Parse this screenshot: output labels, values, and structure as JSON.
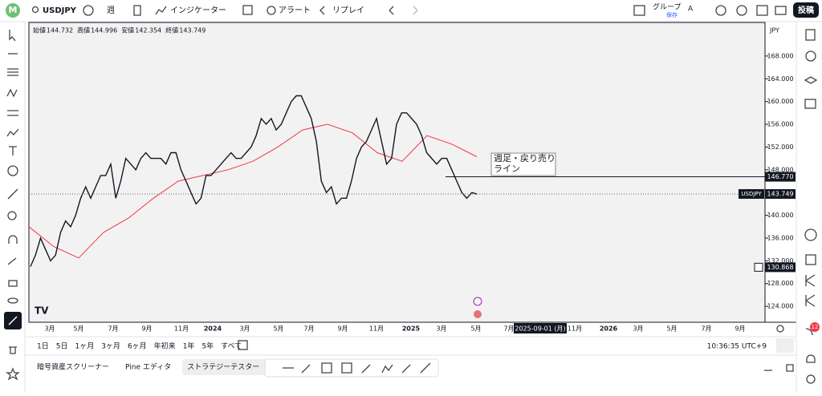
{
  "toolbar": {
    "avatar": "M",
    "symbol": "USDJPY",
    "interval": "週",
    "indicators": "インジケーター",
    "alerts": "アラート",
    "replay": "リプレイ",
    "group": "グループ",
    "saved": "保存",
    "group_letter": "A",
    "publish": "投稿"
  },
  "legend": {
    "open_label": "始値",
    "open": 144.732,
    "high_label": "高値",
    "high": 144.996,
    "low_label": "安値",
    "low": 142.354,
    "close_label": "終値",
    "close": 143.749
  },
  "chart": {
    "currency": "JPY",
    "ylim": [
      121.2,
      173.9
    ],
    "price_ticks": [
      {
        "value": 124,
        "label": "124.000"
      },
      {
        "value": 128,
        "label": "128.000"
      },
      {
        "value": 132,
        "label": "132.000"
      },
      {
        "value": 136,
        "label": "136.000"
      },
      {
        "value": 140,
        "label": "140.000"
      },
      {
        "value": 144,
        "label": "144.000"
      },
      {
        "value": 148,
        "label": "148.000"
      },
      {
        "value": 152,
        "label": "152.000"
      },
      {
        "value": 156,
        "label": "156.000"
      },
      {
        "value": 160,
        "label": "160.000"
      },
      {
        "value": 164,
        "label": "164.000"
      },
      {
        "value": 168,
        "label": "168.000"
      }
    ],
    "time_labels": [
      "3月",
      "5月",
      "7月",
      "9月",
      "11月",
      "2024",
      "3月",
      "5月",
      "7月",
      "9月",
      "11月",
      "2025",
      "3月",
      "5月",
      "7月",
      "11月",
      "2026",
      "3月",
      "5月",
      "7月",
      "9月"
    ],
    "crosshair_date": "2025-09-01 (月)",
    "closes": [
      131,
      133,
      136,
      134,
      132,
      133,
      137,
      139,
      138,
      140,
      143,
      145,
      143,
      145,
      147,
      147,
      149,
      143,
      146,
      150,
      149,
      148,
      150,
      151,
      150,
      150,
      150,
      149,
      151,
      151,
      148,
      146,
      144,
      142,
      143,
      147,
      147,
      148,
      149,
      150,
      151,
      150,
      150,
      151,
      152,
      154,
      157,
      156,
      157,
      155,
      156,
      158,
      160,
      161,
      161,
      159,
      157,
      153,
      146,
      144,
      145,
      142,
      143,
      143,
      146,
      150,
      152,
      153,
      155,
      157,
      153,
      149,
      150,
      156,
      158,
      158,
      157,
      156,
      154,
      151,
      150,
      149,
      150,
      150,
      148,
      146,
      144,
      143,
      144,
      143.749
    ],
    "moving_average": [
      138,
      134.5,
      132.5,
      137,
      139.5,
      143,
      146,
      147,
      148,
      149.5,
      152,
      155,
      156,
      154.5,
      151,
      149.5,
      154,
      152.5,
      150.3
    ],
    "resistance": {
      "value": 146.77,
      "label": "146.770"
    },
    "last_price": {
      "symbol": "USDJPY",
      "value": 143.749
    },
    "marker": {
      "value": 130.868
    },
    "annotation": [
      "週足・戻り売り",
      "ライン"
    ]
  },
  "periods": [
    "1日",
    "5日",
    "1ヶ月",
    "3ヶ月",
    "6ヶ月",
    "年初来",
    "1年",
    "5年",
    "すべて"
  ],
  "clock": "10:36:35 UTC+9",
  "tabs": [
    "暗号資産スクリーナー",
    "Pine エディタ",
    "ストラテジーテスター"
  ],
  "notifications": 12
}
